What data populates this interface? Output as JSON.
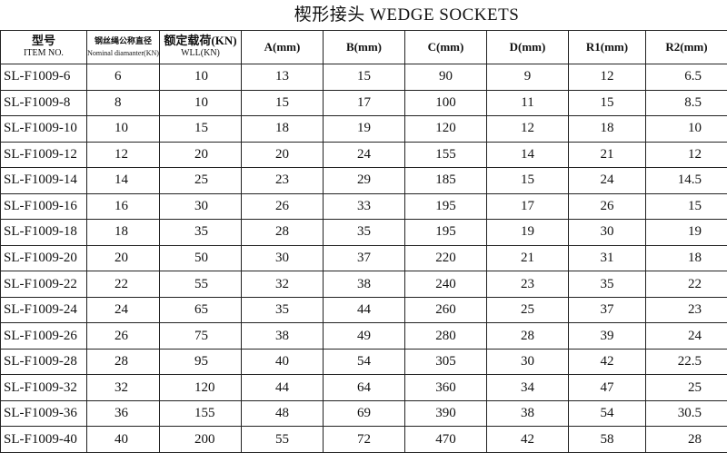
{
  "title": "楔形接头  WEDGE SOCKETS",
  "table": {
    "header": [
      [
        "型号",
        "ITEM NO."
      ],
      [
        "钢丝绳公称直径",
        "Nominal diamanter(KN)"
      ],
      [
        "额定载荷(KN)",
        "WLL(KN)"
      ],
      [
        "A(mm)"
      ],
      [
        "B(mm)"
      ],
      [
        "C(mm)"
      ],
      [
        "D(mm)"
      ],
      [
        "R1(mm)"
      ],
      [
        "R2(mm)"
      ]
    ],
    "rows": [
      [
        "SL-F1009-6",
        6,
        10,
        13,
        15,
        90,
        9,
        12,
        6.5
      ],
      [
        "SL-F1009-8",
        8,
        10,
        15,
        17,
        100,
        11,
        15,
        8.5
      ],
      [
        "SL-F1009-10",
        10,
        15,
        18,
        19,
        120,
        12,
        18,
        10
      ],
      [
        "SL-F1009-12",
        12,
        20,
        20,
        24,
        155,
        14,
        21,
        12
      ],
      [
        "SL-F1009-14",
        14,
        25,
        23,
        29,
        185,
        15,
        24,
        14.5
      ],
      [
        "SL-F1009-16",
        16,
        30,
        26,
        33,
        195,
        17,
        26,
        15
      ],
      [
        "SL-F1009-18",
        18,
        35,
        28,
        35,
        195,
        19,
        30,
        19
      ],
      [
        "SL-F1009-20",
        20,
        50,
        30,
        37,
        220,
        21,
        31,
        18
      ],
      [
        "SL-F1009-22",
        22,
        55,
        32,
        38,
        240,
        23,
        35,
        22
      ],
      [
        "SL-F1009-24",
        24,
        65,
        35,
        44,
        260,
        25,
        37,
        23
      ],
      [
        "SL-F1009-26",
        26,
        75,
        38,
        49,
        280,
        28,
        39,
        24
      ],
      [
        "SL-F1009-28",
        28,
        95,
        40,
        54,
        305,
        30,
        42,
        22.5
      ],
      [
        "SL-F1009-32",
        32,
        120,
        44,
        64,
        360,
        34,
        47,
        25
      ],
      [
        "SL-F1009-36",
        36,
        155,
        48,
        69,
        390,
        38,
        54,
        30.5
      ],
      [
        "SL-F1009-40",
        40,
        200,
        55,
        72,
        470,
        42,
        58,
        28
      ]
    ]
  }
}
